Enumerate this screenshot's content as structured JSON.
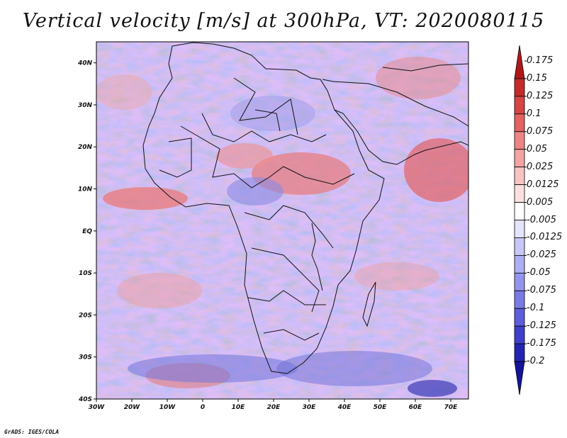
{
  "title": "Vertical velocity [m/s] at 300hPa, VT: 2020080115",
  "credit": "GrADS: IGES/COLA",
  "map": {
    "lat_range": [
      -40,
      45
    ],
    "lon_range": [
      -30,
      75
    ],
    "lat_ticks": [
      {
        "value": 40,
        "label": "40N"
      },
      {
        "value": 30,
        "label": "30N"
      },
      {
        "value": 20,
        "label": "20N"
      },
      {
        "value": 10,
        "label": "10N"
      },
      {
        "value": 0,
        "label": "EQ"
      },
      {
        "value": -10,
        "label": "10S"
      },
      {
        "value": -20,
        "label": "20S"
      },
      {
        "value": -30,
        "label": "30S"
      },
      {
        "value": -40,
        "label": "40S"
      }
    ],
    "lon_ticks": [
      {
        "value": -30,
        "label": "30W"
      },
      {
        "value": -20,
        "label": "20W"
      },
      {
        "value": -10,
        "label": "10W"
      },
      {
        "value": 0,
        "label": "0"
      },
      {
        "value": 10,
        "label": "10E"
      },
      {
        "value": 20,
        "label": "20E"
      },
      {
        "value": 30,
        "label": "30E"
      },
      {
        "value": 40,
        "label": "40E"
      },
      {
        "value": 50,
        "label": "50E"
      },
      {
        "value": 60,
        "label": "60E"
      },
      {
        "value": 70,
        "label": "70E"
      }
    ]
  },
  "colorbar": {
    "labels": [
      "0.175",
      "0.15",
      "0.125",
      "0.1",
      "0.075",
      "0.05",
      "0.025",
      "0.0125",
      "0.005",
      "-0.005",
      "-0.0125",
      "-0.025",
      "-0.05",
      "-0.075",
      "-0.1",
      "-0.125",
      "-0.175",
      "-0.2"
    ],
    "colors": [
      "#b01818",
      "#c52a2a",
      "#d64444",
      "#e46262",
      "#ee8484",
      "#f4a4a4",
      "#f9c4c4",
      "#fce0e0",
      "#ffffff",
      "#e4e4fc",
      "#c8c8f8",
      "#aeaef4",
      "#9494ee",
      "#7a7ae6",
      "#5e5edc",
      "#4040cc",
      "#2424b4",
      "#14149a"
    ]
  }
}
